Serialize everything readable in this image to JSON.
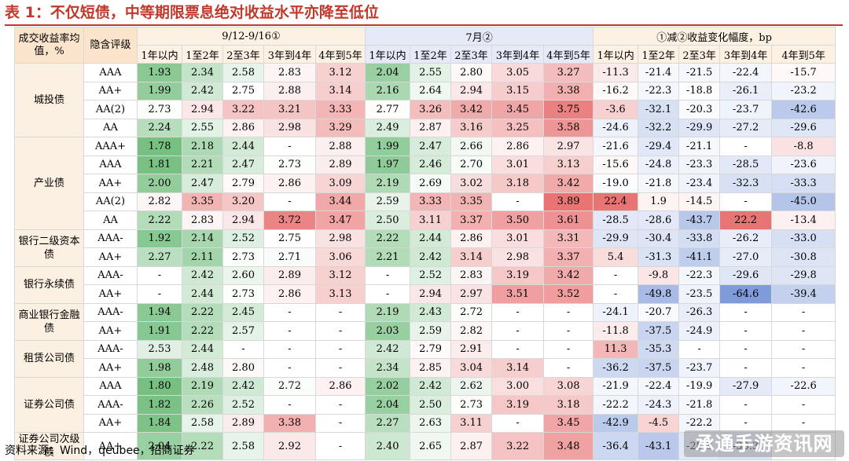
{
  "title": "表 1：不仅短债，中等期限票息绝对收益水平亦降至低位",
  "source": "资料来源：Wind，qeubee，招商证券",
  "watermark": "承通手游资讯网",
  "header": {
    "corner_label": "成交收益率均值，%",
    "rating_label": "隐含评级",
    "groups": [
      "9/12-9/16①",
      "7月②",
      "①减②收益变化幅度，bp"
    ],
    "tenors": [
      "1年以内",
      "1至2年",
      "2至3年",
      "3年到4年",
      "4年到5年"
    ]
  },
  "colors": {
    "level_low": "#5fb56c",
    "level_high": "#e45b5b",
    "change_negative": "#6f8fd6",
    "change_positive": "#e45b5b"
  },
  "categories": [
    {
      "name": "城投债",
      "rows": [
        {
          "rating": "AAA",
          "a": [
            "1.93",
            "2.34",
            "2.58",
            "2.83",
            "3.12"
          ],
          "b": [
            "2.04",
            "2.55",
            "2.80",
            "3.05",
            "3.27"
          ],
          "c": [
            "-11.3",
            "-21.4",
            "-21.5",
            "-22.4",
            "-15.7"
          ]
        },
        {
          "rating": "AA+",
          "a": [
            "1.99",
            "2.42",
            "2.75",
            "2.88",
            "3.14"
          ],
          "b": [
            "2.16",
            "2.64",
            "2.94",
            "3.15",
            "3.38"
          ],
          "c": [
            "-16.2",
            "-22.3",
            "-18.8",
            "-26.1",
            "-23.2"
          ]
        },
        {
          "rating": "AA(2)",
          "a": [
            "2.73",
            "2.94",
            "3.22",
            "3.21",
            "3.33"
          ],
          "b": [
            "2.77",
            "3.26",
            "3.42",
            "3.45",
            "3.75"
          ],
          "c": [
            "-3.6",
            "-32.1",
            "-20.3",
            "-23.7",
            "-42.6"
          ]
        },
        {
          "rating": "AA",
          "a": [
            "2.24",
            "2.55",
            "2.86",
            "2.98",
            "3.29"
          ],
          "b": [
            "2.49",
            "2.87",
            "3.16",
            "3.25",
            "3.58"
          ],
          "c": [
            "-24.6",
            "-32.2",
            "-29.9",
            "-27.2",
            "-29.6"
          ]
        }
      ]
    },
    {
      "name": "产业债",
      "rows": [
        {
          "rating": "AAA+",
          "a": [
            "1.78",
            "2.18",
            "2.44",
            "-",
            "2.88"
          ],
          "b": [
            "1.99",
            "2.47",
            "2.66",
            "2.86",
            "2.97"
          ],
          "c": [
            "-21.6",
            "-29.4",
            "-21.1",
            "-",
            "-8.8"
          ]
        },
        {
          "rating": "AAA",
          "a": [
            "1.81",
            "2.21",
            "2.47",
            "2.73",
            "2.89"
          ],
          "b": [
            "1.97",
            "2.46",
            "2.70",
            "3.01",
            "3.13"
          ],
          "c": [
            "-15.6",
            "-24.8",
            "-23.3",
            "-28.5",
            "-23.6"
          ]
        },
        {
          "rating": "AA+",
          "a": [
            "2.00",
            "2.47",
            "2.79",
            "2.86",
            "3.09"
          ],
          "b": [
            "2.19",
            "2.69",
            "3.02",
            "3.18",
            "3.42"
          ],
          "c": [
            "-19.0",
            "-21.8",
            "-23.4",
            "-32.3",
            "-33.3"
          ]
        },
        {
          "rating": "AA(2)",
          "a": [
            "2.82",
            "3.35",
            "3.20",
            "-",
            "3.44"
          ],
          "b": [
            "2.59",
            "3.33",
            "3.35",
            "-",
            "3.89"
          ],
          "c": [
            "22.4",
            "1.9",
            "-14.5",
            "-",
            "-45.0"
          ]
        },
        {
          "rating": "AA",
          "a": [
            "2.22",
            "2.83",
            "2.94",
            "3.72",
            "3.47"
          ],
          "b": [
            "2.50",
            "3.11",
            "3.37",
            "3.50",
            "3.61"
          ],
          "c": [
            "-28.5",
            "-28.6",
            "-43.7",
            "22.2",
            "-13.4"
          ]
        }
      ]
    },
    {
      "name": "银行二级资本债",
      "rows": [
        {
          "rating": "AAA-",
          "a": [
            "1.92",
            "2.14",
            "2.52",
            "2.75",
            "2.98"
          ],
          "b": [
            "2.22",
            "2.44",
            "2.86",
            "3.01",
            "3.31"
          ],
          "c": [
            "-29.9",
            "-30.4",
            "-33.8",
            "-26.2",
            "-33.0"
          ]
        },
        {
          "rating": "AA+",
          "a": [
            "2.27",
            "2.11",
            "2.73",
            "2.71",
            "3.06"
          ],
          "b": [
            "2.21",
            "2.42",
            "3.14",
            "2.98",
            "3.37"
          ],
          "c": [
            "5.4",
            "-31.3",
            "-41.1",
            "-27.0",
            "-30.8"
          ]
        }
      ]
    },
    {
      "name": "银行永续债",
      "rows": [
        {
          "rating": "AAA-",
          "a": [
            "-",
            "2.42",
            "2.60",
            "2.89",
            "3.12"
          ],
          "b": [
            "-",
            "2.52",
            "2.83",
            "3.19",
            "3.42"
          ],
          "c": [
            "-",
            "-9.8",
            "-22.3",
            "-29.6",
            "-29.8"
          ]
        },
        {
          "rating": "AA+",
          "a": [
            "-",
            "2.44",
            "2.73",
            "2.86",
            "3.13"
          ],
          "b": [
            "-",
            "2.94",
            "2.97",
            "3.51",
            "3.52"
          ],
          "c": [
            "-",
            "-49.8",
            "-23.5",
            "-64.6",
            "-39.4"
          ]
        }
      ]
    },
    {
      "name": "商业银行金融债",
      "rows": [
        {
          "rating": "AAA-",
          "a": [
            "1.94",
            "2.22",
            "2.45",
            "-",
            "-"
          ],
          "b": [
            "2.19",
            "2.43",
            "2.72",
            "-",
            "-"
          ],
          "c": [
            "-24.1",
            "-20.7",
            "-26.3",
            "-",
            "-"
          ]
        },
        {
          "rating": "AA+",
          "a": [
            "1.91",
            "2.22",
            "2.57",
            "-",
            "-"
          ],
          "b": [
            "2.03",
            "2.59",
            "2.82",
            "-",
            "-"
          ],
          "c": [
            "-11.8",
            "-37.5",
            "-24.9",
            "-",
            "-"
          ]
        }
      ]
    },
    {
      "name": "租赁公司债",
      "rows": [
        {
          "rating": "AAA-",
          "a": [
            "2.53",
            "2.44",
            "-",
            "-",
            "-"
          ],
          "b": [
            "2.42",
            "2.79",
            "2.91",
            "-",
            "-"
          ],
          "c": [
            "11.3",
            "-35.3",
            "-",
            "-",
            "-"
          ]
        },
        {
          "rating": "AA+",
          "a": [
            "1.98",
            "2.48",
            "2.80",
            "-",
            "-"
          ],
          "b": [
            "2.34",
            "2.85",
            "3.04",
            "3.14",
            "-"
          ],
          "c": [
            "-36.2",
            "-37.5",
            "-23.7",
            "-",
            "-"
          ]
        }
      ]
    },
    {
      "name": "证券公司债",
      "rows": [
        {
          "rating": "AAA",
          "a": [
            "1.80",
            "2.19",
            "2.42",
            "2.72",
            "2.86"
          ],
          "b": [
            "2.02",
            "2.42",
            "2.62",
            "3.00",
            "3.08"
          ],
          "c": [
            "-21.9",
            "-22.4",
            "-19.9",
            "-27.9",
            "-22.6"
          ]
        },
        {
          "rating": "AAA-",
          "a": [
            "1.82",
            "2.26",
            "2.52",
            "-",
            "-"
          ],
          "b": [
            "2.04",
            "2.50",
            "2.73",
            "3.19",
            "3.18"
          ],
          "c": [
            "-22.2",
            "-24.3",
            "-21.8",
            "-",
            "-"
          ]
        },
        {
          "rating": "AA+",
          "a": [
            "1.84",
            "2.58",
            "2.89",
            "3.38",
            "-"
          ],
          "b": [
            "2.27",
            "2.63",
            "3.11",
            "-",
            "3.45"
          ],
          "c": [
            "-42.9",
            "-4.5",
            "-22.2",
            "-",
            "-"
          ]
        }
      ]
    },
    {
      "name": "证券公司次级债",
      "rows": [
        {
          "rating": "AA+",
          "a": [
            "2.04",
            "2.22",
            "2.58",
            "2.92",
            "-"
          ],
          "b": [
            "2.40",
            "2.65",
            "2.87",
            "3.22",
            "3.48"
          ],
          "c": [
            "-36.4",
            "-43.1",
            "-28.8",
            "-30.3",
            "-"
          ]
        }
      ]
    }
  ]
}
